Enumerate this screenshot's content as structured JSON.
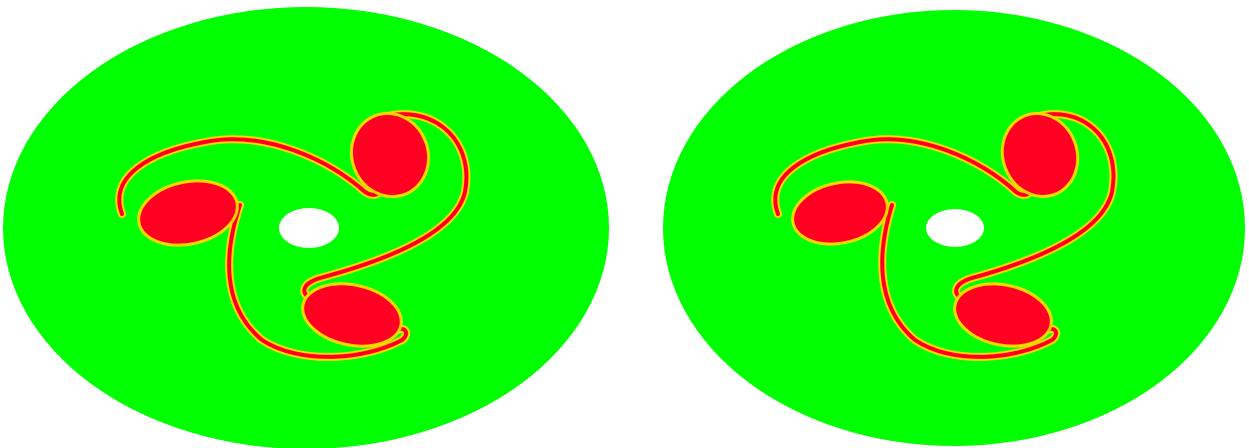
{
  "figure": {
    "panels": [
      {
        "id": "left"
      },
      {
        "id": "right"
      }
    ],
    "colors": {
      "background": "#00ff00",
      "vortex_core": "#ff0022",
      "filament_edge": "#ffd400",
      "hole": "#ffffff",
      "page": "#ffffff"
    },
    "structure": {
      "vortex_count": 3,
      "central_hole": true
    }
  }
}
